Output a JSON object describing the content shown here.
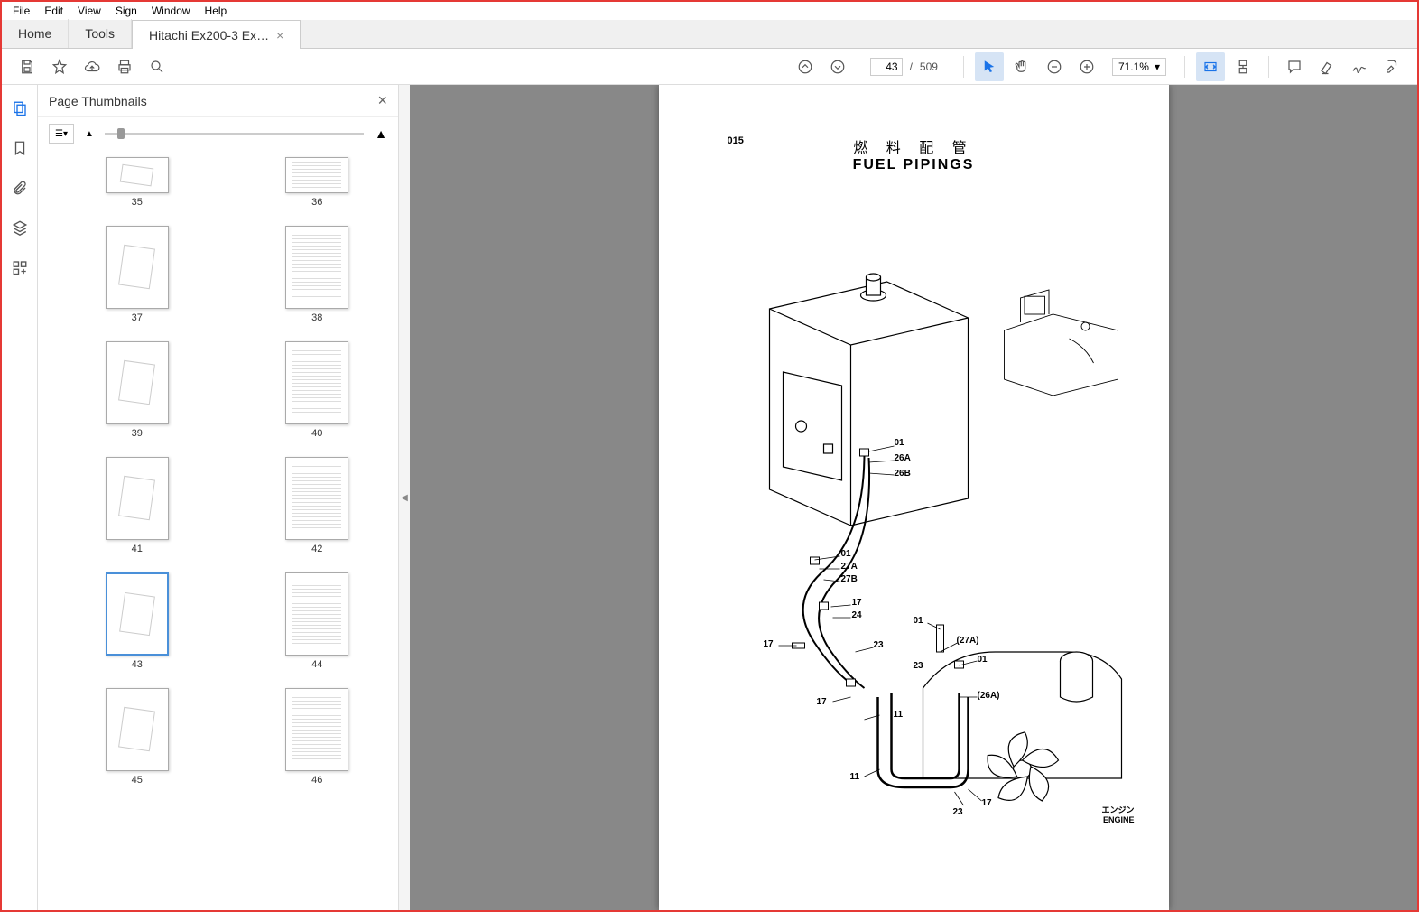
{
  "menu": {
    "items": [
      "File",
      "Edit",
      "View",
      "Sign",
      "Window",
      "Help"
    ]
  },
  "tabs": {
    "home": "Home",
    "tools": "Tools",
    "doc": "Hitachi Ex200-3 Ex…"
  },
  "toolbar": {
    "current_page": "43",
    "total_pages": "509",
    "page_sep": "/",
    "zoom": "71.1%"
  },
  "thumbpanel": {
    "title": "Page Thumbnails",
    "pages": [
      35,
      36,
      37,
      38,
      39,
      40,
      41,
      42,
      43,
      44,
      45,
      46
    ],
    "selected": 43,
    "partial_first_row": true
  },
  "page": {
    "section_number": "015",
    "title_jp": "燃 料 配 管",
    "title_en": "FUEL PIPINGS",
    "engine_label_jp": "エンジン",
    "engine_label_en": "ENGINE",
    "callouts": [
      "01",
      "26A",
      "26B",
      "01",
      "27A",
      "27B",
      "17",
      "24",
      "23",
      "17",
      "17",
      "01",
      "(27A)",
      "23",
      "01",
      "(26A)",
      "11",
      "11",
      "23",
      "17"
    ]
  },
  "colors": {
    "border": "#e53935",
    "toolbar_bg": "#ffffff",
    "tabbar_bg": "#f0f0f0",
    "docview_bg": "#888888",
    "accent": "#1a73e8"
  }
}
